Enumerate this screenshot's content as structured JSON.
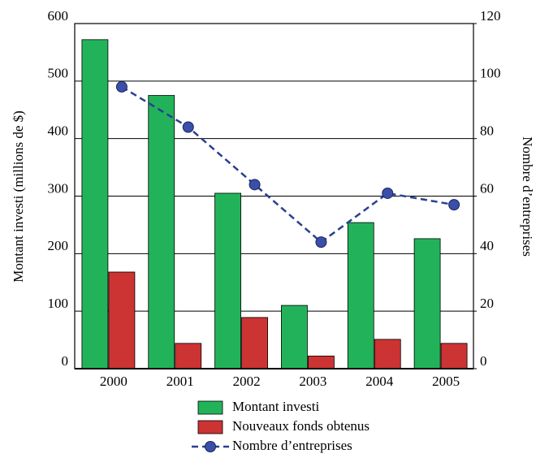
{
  "chart_data": {
    "type": "bar-line",
    "categories": [
      "2000",
      "2001",
      "2002",
      "2003",
      "2004",
      "2005"
    ],
    "series": [
      {
        "name": "Montant investi",
        "color": "#22b35a",
        "values": [
          572,
          475,
          305,
          110,
          254,
          226
        ]
      },
      {
        "name": "Nouveaux fonds obtenus",
        "color": "#cc3333",
        "values": [
          168,
          44,
          89,
          22,
          51,
          44
        ]
      },
      {
        "name": "Nombre d’entreprises",
        "color": "#2a3f8f",
        "axis": "y2",
        "line": true,
        "values": [
          98,
          84,
          64,
          44,
          61,
          57
        ]
      }
    ],
    "ylabel": "Montant investi (millions de $)",
    "y2label": "Nombre d’entreprises",
    "ylim": [
      0,
      600
    ],
    "yticks": [
      0,
      100,
      200,
      300,
      400,
      500,
      600
    ],
    "y2lim": [
      0,
      120
    ],
    "y2ticks": [
      0,
      20,
      40,
      60,
      80,
      100,
      120
    ],
    "grid": true,
    "legend": "bottom"
  }
}
